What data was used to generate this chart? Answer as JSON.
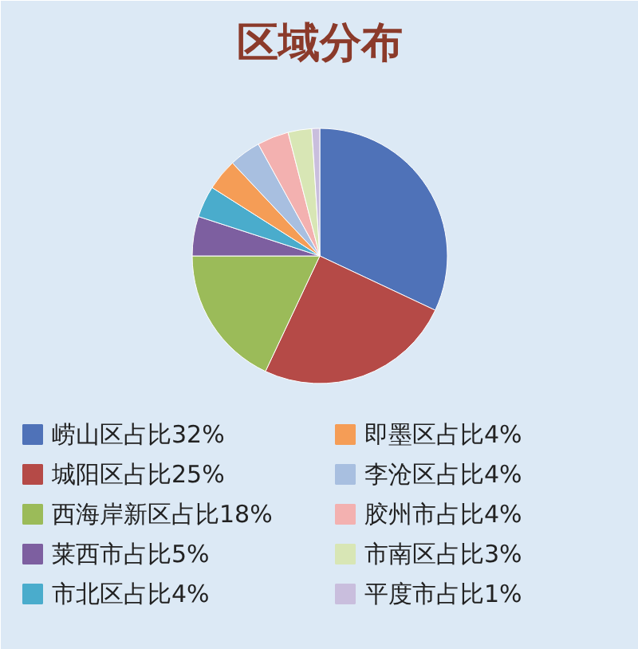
{
  "chart_data": {
    "type": "pie",
    "title": "区域分布",
    "categories": [
      "崂山区占比32%",
      "城阳区占比25%",
      "西海岸新区占比18%",
      "莱西市占比5%",
      "市北区占比4%",
      "即墨区占比4%",
      "李沧区占比4%",
      "胶州市占比4%",
      "市南区占比3%",
      "平度市占比1%"
    ],
    "values": [
      32,
      25,
      18,
      5,
      4,
      4,
      4,
      4,
      3,
      1
    ],
    "colors": [
      "#4f72b8",
      "#b54a47",
      "#9bbb59",
      "#7d5fa0",
      "#4aaccc",
      "#f59d56",
      "#a8bfe0",
      "#f3b1b0",
      "#d8e6b5",
      "#c9bedd"
    ],
    "legend": "bottom"
  }
}
